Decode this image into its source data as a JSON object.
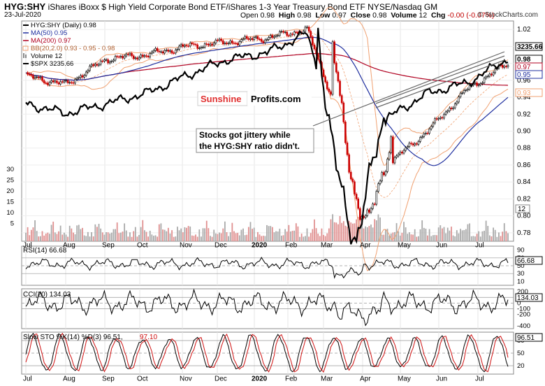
{
  "header": {
    "symbol": "HYG:SHY",
    "description": "iShares iBoxx $ High Yield Corporate Bond ETF/iShares 1-3 Year Treasury Bond ETF  NYSE/Nasdaq GM",
    "date": "23-Jul-2020",
    "open_label": "Open",
    "open": "0.98",
    "high_label": "High",
    "high": "0.98",
    "low_label": "Low",
    "low": "0.97",
    "close_label": "Close",
    "close": "0.98",
    "volume_label": "Volume",
    "volume": "12",
    "chg_label": "Chg",
    "chg": "-0.00 (-0.07%)",
    "credit": "© StockCharts.com"
  },
  "legend": {
    "main": "HYG:SHY (Daily) 0.98",
    "ma50": "MA(50) 0.95",
    "ma200": "MA(200) 0.97",
    "bb": "BB(20,2.0) 0.93 - 0.95 - 0.98",
    "volume": "Volume 12",
    "spx": "$SPX 3235.66"
  },
  "annotations": {
    "logo_part1": "Sunshine",
    "logo_part2": "Profits.com",
    "note_line1": "Stocks got jittery while",
    "note_line2": "the HYG:SHY ratio didn't."
  },
  "colors": {
    "ma50": "#1f2f9f",
    "ma200": "#b00020",
    "bb": "#f0a070",
    "spx": "#000000",
    "up": "#000000",
    "down": "#cc0000",
    "vol_up": "#aaaaaa",
    "vol_down": "#e09090",
    "rsi_fill_hi": "#6a8f5a",
    "rsi_fill_lo": "#8a5a5a"
  },
  "chart_data": [
    {
      "type": "candlestick",
      "name": "HYG:SHY",
      "x_tick_labels": [
        "Jul",
        "Aug",
        "Sep",
        "Oct",
        "Nov",
        "Dec",
        "2020",
        "Feb",
        "Mar",
        "Apr",
        "May",
        "Jun",
        "Jul"
      ],
      "y_ticks": [
        0.78,
        0.8,
        0.82,
        0.84,
        0.86,
        0.88,
        0.9,
        0.92,
        0.94,
        0.96,
        0.98,
        1.0,
        1.02
      ],
      "y_tick_labels": [
        "0.78",
        "0.80",
        "0.82",
        "0.84",
        "0.86",
        "0.88",
        "0.90",
        "0.92",
        "0.94",
        "0.96",
        "0.98",
        "1.00",
        "1.02"
      ],
      "ylim": [
        0.77,
        1.03
      ],
      "right_labels": [
        "3235.66",
        "0.98",
        "0.97",
        "0.95",
        "0.93"
      ],
      "volume_ticks": [
        "30",
        "25",
        "20",
        "15",
        "10",
        "5"
      ],
      "volume_right_label": "12",
      "monthly_close": [
        0.965,
        0.955,
        0.985,
        0.99,
        1.0,
        1.005,
        1.01,
        1.02,
        0.89,
        0.86,
        0.9,
        0.95,
        0.98
      ],
      "monthly_spx": [
        2980,
        2925,
        2980,
        3040,
        3140,
        3230,
        3270,
        3380,
        2580,
        2900,
        3040,
        3100,
        3235.66
      ]
    },
    {
      "type": "line",
      "name": "RSI(14)",
      "value": "66.68",
      "y_ticks": [
        "90",
        "70",
        "50",
        "30",
        "10"
      ],
      "right_label": "66.68",
      "ylim": [
        0,
        100
      ]
    },
    {
      "type": "line",
      "name": "CCI(20)",
      "value": "134.03",
      "y_ticks": [
        "200",
        "100",
        "0",
        "-100",
        "-200",
        "-400"
      ],
      "right_label": "134.03"
    },
    {
      "type": "line",
      "name": "Slow STO %K(14) %D(3)",
      "k": "96.51",
      "d": "97.10",
      "title_main": "Slow STO %K(14) %D(3) 96.51,",
      "title_d": " 97.10",
      "y_ticks": [
        "80",
        "50",
        "20"
      ],
      "right_label": "96.51",
      "ylim": [
        0,
        100
      ]
    }
  ]
}
